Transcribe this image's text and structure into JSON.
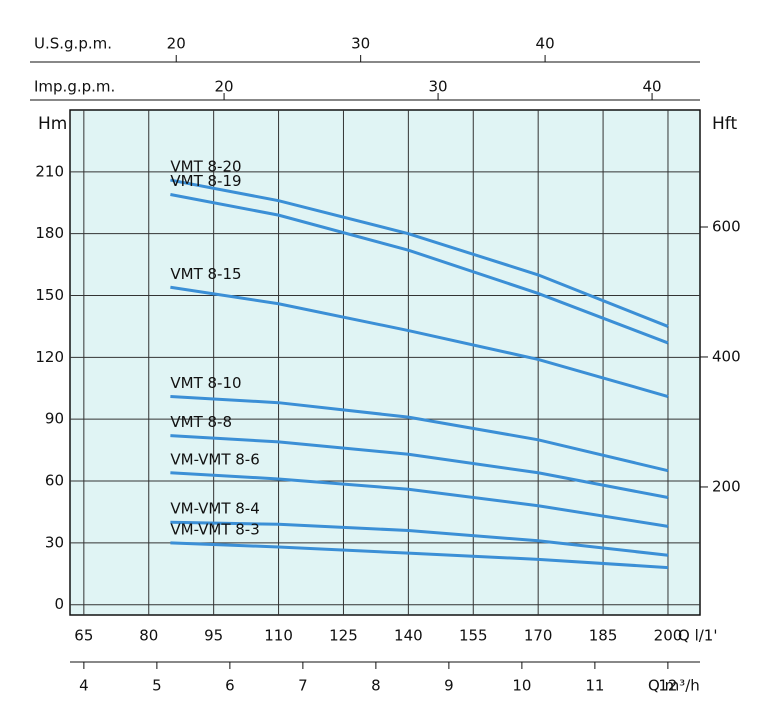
{
  "chart_data": {
    "type": "line",
    "x_label": "Q l/1'",
    "y_label": "Hm",
    "y2_label": "Hft",
    "x": [
      85,
      110,
      140,
      170,
      200
    ],
    "xlim": [
      61.8,
      207.4
    ],
    "xticks": [
      65,
      80,
      95,
      110,
      125,
      140,
      155,
      170,
      185,
      200
    ],
    "ylim": [
      -5,
      240
    ],
    "yticks": [
      0,
      30,
      60,
      90,
      120,
      150,
      180,
      210
    ],
    "y2lim": [
      3,
      780
    ],
    "y2ticks": [
      200,
      400,
      600
    ],
    "grid": true,
    "series": [
      {
        "name": "VMT 8-20",
        "color": "#3b8fd6",
        "values": [
          206,
          196,
          180,
          160,
          135
        ]
      },
      {
        "name": "VMT 8-19",
        "color": "#3b8fd6",
        "values": [
          199,
          189,
          172,
          151,
          127
        ]
      },
      {
        "name": "VMT 8-15",
        "color": "#3b8fd6",
        "values": [
          154,
          146,
          133,
          119,
          101
        ]
      },
      {
        "name": "VMT 8-10",
        "color": "#3b8fd6",
        "values": [
          101,
          98,
          91,
          80,
          65
        ]
      },
      {
        "name": "VMT 8-8",
        "color": "#3b8fd6",
        "values": [
          82,
          79,
          73,
          64,
          52
        ]
      },
      {
        "name": "VM-VMT 8-6",
        "color": "#3b8fd6",
        "values": [
          64,
          61,
          56,
          48,
          38
        ]
      },
      {
        "name": "VM-VMT 8-4",
        "color": "#3b8fd6",
        "values": [
          40,
          39,
          36,
          31,
          24
        ]
      },
      {
        "name": "VM-VMT 8-3",
        "color": "#3b8fd6",
        "values": [
          30,
          28,
          25,
          22,
          18
        ]
      }
    ],
    "extra_x_axes": [
      {
        "label": "U.S.g.p.m.",
        "lim": [
          14.24,
          48.4
        ],
        "ticks": [
          20,
          30,
          40
        ]
      },
      {
        "label": "Imp.g.p.m.",
        "lim": [
          12.8,
          42.24
        ],
        "ticks": [
          20,
          30,
          40
        ]
      },
      {
        "label": "Q m³/h",
        "lim": [
          3.81,
          12.44
        ],
        "ticks": [
          4,
          5,
          6,
          7,
          8,
          9,
          10,
          11,
          12
        ]
      }
    ]
  }
}
